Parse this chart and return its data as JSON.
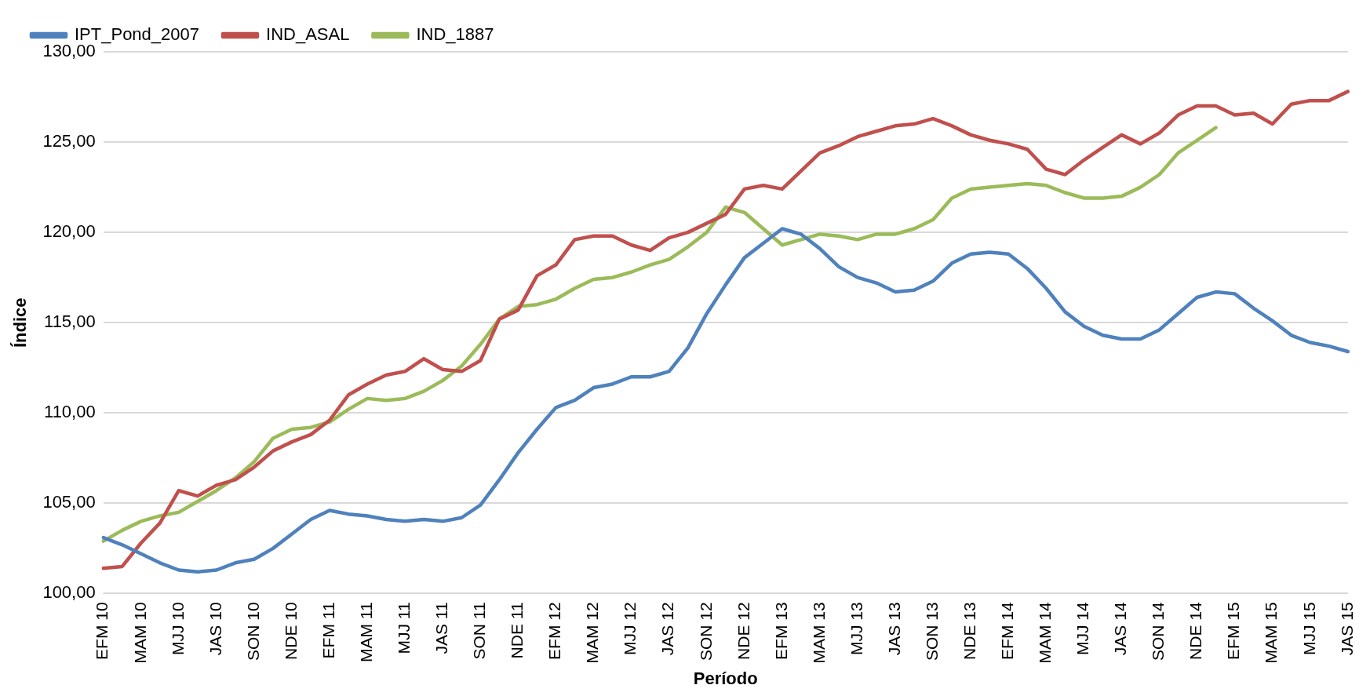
{
  "chart_data": {
    "type": "line",
    "xlabel": "Período",
    "ylabel": "Índice",
    "categories": [
      "EFM 10",
      null,
      "MAM 10",
      null,
      "MJJ 10",
      null,
      "JAS 10",
      null,
      "SON 10",
      null,
      "NDE 10",
      null,
      "EFM 11",
      null,
      "MAM 11",
      null,
      "MJJ 11",
      null,
      "JAS 11",
      null,
      "SON 11",
      null,
      "NDE 11",
      null,
      "EFM 12",
      null,
      "MAM 12",
      null,
      "MJJ 12",
      null,
      "JAS 12",
      null,
      "SON 12",
      null,
      "NDE 12",
      null,
      "EFM 13",
      null,
      "MAM 13",
      null,
      "MJJ 13",
      null,
      "JAS 13",
      null,
      "SON 13",
      null,
      "NDE 13",
      null,
      "EFM 14",
      null,
      "MAM 14",
      null,
      "MJJ 14",
      null,
      "JAS 14",
      null,
      "SON 14",
      null,
      "NDE 14",
      null,
      "EFM 15",
      null,
      "MAM 15",
      null,
      "MJJ 15",
      null,
      "JAS 15"
    ],
    "series": [
      {
        "name": "IPT_Pond_2007",
        "color": "#4f81bd",
        "values": [
          103.1,
          102.7,
          102.2,
          101.7,
          101.3,
          101.2,
          101.3,
          101.7,
          101.9,
          102.5,
          103.3,
          104.1,
          104.6,
          104.4,
          104.3,
          104.1,
          104.0,
          104.1,
          104.0,
          104.2,
          104.9,
          106.3,
          107.8,
          109.1,
          110.3,
          110.7,
          111.4,
          111.6,
          112.0,
          112.0,
          112.3,
          113.6,
          115.5,
          117.1,
          118.6,
          119.4,
          120.2,
          119.9,
          119.1,
          118.1,
          117.5,
          117.2,
          116.7,
          116.8,
          117.3,
          118.3,
          118.8,
          118.9,
          118.8,
          118.0,
          116.9,
          115.6,
          114.8,
          114.3,
          114.1,
          114.1,
          114.6,
          115.5,
          116.4,
          116.7,
          116.6,
          115.8,
          115.1,
          114.3,
          113.9,
          113.7,
          113.4
        ]
      },
      {
        "name": "IND_ASAL",
        "color": "#c0504d",
        "values": [
          101.4,
          101.5,
          102.8,
          103.9,
          105.7,
          105.4,
          106.0,
          106.3,
          107.0,
          107.9,
          108.4,
          108.8,
          109.6,
          111.0,
          111.6,
          112.1,
          112.3,
          113.0,
          112.4,
          112.3,
          112.9,
          115.2,
          115.7,
          117.6,
          118.2,
          119.6,
          119.8,
          119.8,
          119.3,
          119.0,
          119.7,
          120.0,
          120.5,
          121.0,
          122.4,
          122.6,
          122.4,
          123.4,
          124.4,
          124.8,
          125.3,
          125.6,
          125.9,
          126.0,
          126.3,
          125.9,
          125.4,
          125.1,
          124.9,
          124.6,
          123.5,
          123.2,
          124.0,
          124.7,
          125.4,
          124.9,
          125.5,
          126.5,
          127.0,
          127.0,
          126.5,
          126.6,
          126.0,
          127.1,
          127.3,
          127.3,
          127.8
        ]
      },
      {
        "name": "IND_1887",
        "color": "#9bbb59",
        "values": [
          102.9,
          103.5,
          104.0,
          104.3,
          104.5,
          105.1,
          105.7,
          106.4,
          107.3,
          108.6,
          109.1,
          109.2,
          109.5,
          110.2,
          110.8,
          110.7,
          110.8,
          111.2,
          111.8,
          112.6,
          113.8,
          115.2,
          115.9,
          116.0,
          116.3,
          116.9,
          117.4,
          117.5,
          117.8,
          118.2,
          118.5,
          119.2,
          120.0,
          121.4,
          121.1,
          120.2,
          119.3,
          119.6,
          119.9,
          119.8,
          119.6,
          119.9,
          119.9,
          120.2,
          120.7,
          121.9,
          122.4,
          122.5,
          122.6,
          122.7,
          122.6,
          122.2,
          121.9,
          121.9,
          122.0,
          122.5,
          123.2,
          124.4,
          125.1,
          125.8,
          null,
          null,
          null,
          null,
          null,
          null,
          null
        ]
      }
    ],
    "ylim": [
      100,
      130
    ],
    "yticks": [
      {
        "value": 100,
        "label": "100,00"
      },
      {
        "value": 105,
        "label": "105,00"
      },
      {
        "value": 110,
        "label": "110,00"
      },
      {
        "value": 115,
        "label": "115,00"
      },
      {
        "value": 120,
        "label": "120,00"
      },
      {
        "value": 125,
        "label": "125,00"
      },
      {
        "value": 130,
        "label": "130,00"
      }
    ],
    "grid": "y",
    "legend": "top left",
    "marker": "none",
    "line_style": "solid"
  }
}
